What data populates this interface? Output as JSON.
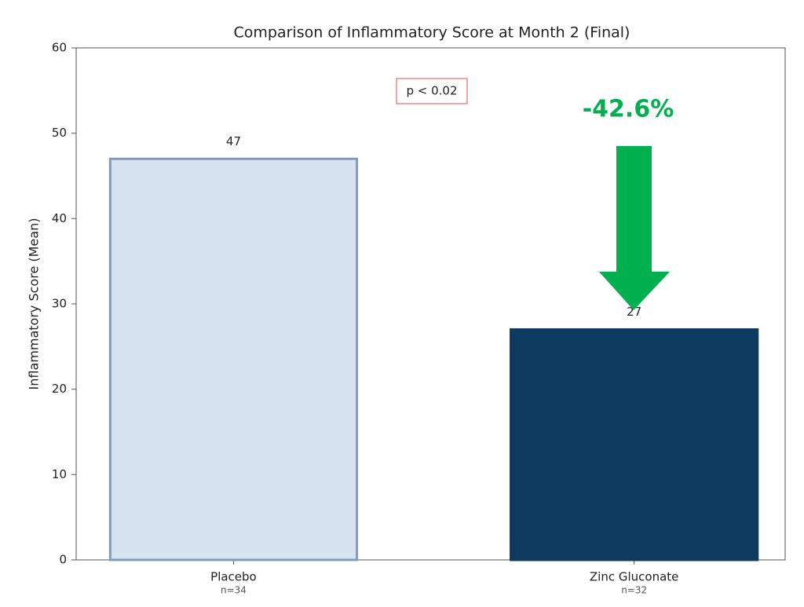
{
  "chart_data": {
    "type": "bar",
    "title": "Comparison of Inflammatory Score at Month 2 (Final)",
    "y_label": "Inflammatory Score (Mean)",
    "categories": [
      "Placebo",
      "Zinc Gluconate"
    ],
    "category_notes": [
      "n=34",
      "n=32"
    ],
    "values": [
      47,
      27
    ],
    "colors": [
      "#d6e3f0",
      "#0f3a60"
    ],
    "edge_colors": [
      "#7f9cc0",
      "#0f3a60"
    ],
    "ylim": [
      0,
      60
    ],
    "yticks": [
      0,
      10,
      20,
      30,
      40,
      50,
      60
    ],
    "grid": false,
    "annotations": [
      {
        "text": "p < 0.02",
        "color": "#e88a8a"
      },
      {
        "text": "-42.6%",
        "color": "#00b04f"
      }
    ]
  }
}
